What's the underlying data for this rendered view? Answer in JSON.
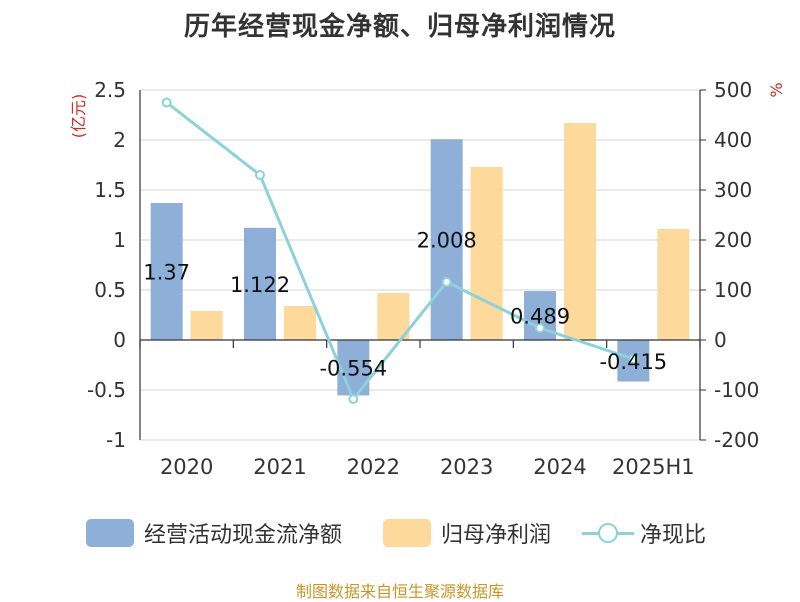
{
  "title": "历年经营现金净额、归母净利润情况",
  "source": "制图数据来自恒生聚源数据库",
  "legend": {
    "items": [
      {
        "label": "经营活动现金流净额",
        "kind": "bar",
        "color": "#8eafd8"
      },
      {
        "label": "归母净利润",
        "kind": "bar",
        "color": "#fdd99b"
      },
      {
        "label": "净现比",
        "kind": "line",
        "color": "#8cd3d9"
      }
    ]
  },
  "chart_data": {
    "type": "bar",
    "categories": [
      "2020",
      "2021",
      "2022",
      "2023",
      "2024",
      "2025H1"
    ],
    "left_axis": {
      "unit_label": "(亿元)",
      "min": -1,
      "max": 2.5,
      "step": 0.5,
      "ticks": [
        "-1",
        "-0.5",
        "0",
        "0.5",
        "1",
        "1.5",
        "2",
        "2.5"
      ]
    },
    "right_axis": {
      "unit_label": "%",
      "min": -200,
      "max": 500,
      "step": 100,
      "ticks": [
        "-200",
        "-100",
        "0",
        "100",
        "200",
        "300",
        "400",
        "500"
      ]
    },
    "series": [
      {
        "name": "经营活动现金流净额",
        "type": "bar",
        "axis": "left",
        "color": "#8eafd8",
        "values": [
          1.37,
          1.122,
          -0.554,
          2.008,
          0.489,
          -0.415
        ],
        "labels": [
          "1.37",
          "1.122",
          "-0.554",
          "2.008",
          "0.489",
          "-0.415"
        ]
      },
      {
        "name": "归母净利润",
        "type": "bar",
        "axis": "left",
        "color": "#fdd99b",
        "values": [
          0.29,
          0.34,
          0.47,
          1.73,
          2.17,
          1.11
        ]
      },
      {
        "name": "净现比",
        "type": "line",
        "axis": "right",
        "color": "#8cd3d9",
        "values": [
          475,
          330,
          -118,
          116,
          24,
          -38
        ]
      }
    ],
    "grid": true,
    "legend_position": "bottom"
  }
}
